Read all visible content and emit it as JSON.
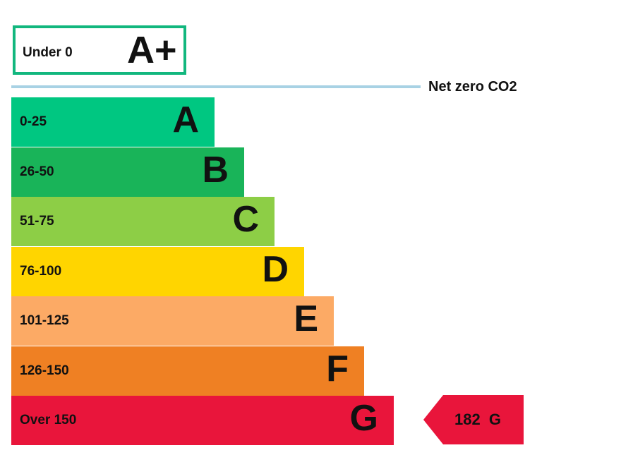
{
  "chart_data": {
    "type": "bar",
    "title": "",
    "top_rating": {
      "range": "Under 0",
      "letter": "A+",
      "color": "#12b77e"
    },
    "net_zero_label": "Net zero CO2",
    "net_zero_line_color": "#a8d2e4",
    "bands": [
      {
        "range": "0-25",
        "letter": "A",
        "color": "#00c781"
      },
      {
        "range": "26-50",
        "letter": "B",
        "color": "#19b459"
      },
      {
        "range": "51-75",
        "letter": "C",
        "color": "#8dce46"
      },
      {
        "range": "76-100",
        "letter": "D",
        "color": "#ffd500"
      },
      {
        "range": "101-125",
        "letter": "E",
        "color": "#fcaa65"
      },
      {
        "range": "126-150",
        "letter": "F",
        "color": "#ef8023"
      },
      {
        "range": "Over 150",
        "letter": "G",
        "color": "#e9153b"
      }
    ],
    "current": {
      "value": 182,
      "letter": "G",
      "label": "182 G",
      "color": "#e9153b"
    }
  }
}
